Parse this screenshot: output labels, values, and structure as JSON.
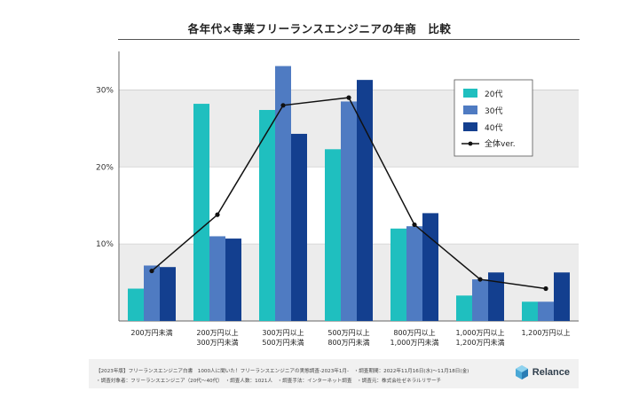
{
  "title": "各年代×専業フリーランスエンジニアの年商　比較",
  "colors": {
    "series_20": "#1fbfbf",
    "series_30": "#4f7bc2",
    "series_40": "#133f8f",
    "overall": "#111111",
    "grid_band": "#ececec"
  },
  "chart_data": {
    "type": "bar",
    "categories": [
      [
        "200万円未満"
      ],
      [
        "200万円以上",
        "300万円未満"
      ],
      [
        "300万円以上",
        "500万円未満"
      ],
      [
        "500万円以上",
        "800万円未満"
      ],
      [
        "800万円以上",
        "1,000万円未満"
      ],
      [
        "1,000万円以上",
        "1,200万円未満"
      ],
      [
        "1,200万円以上"
      ]
    ],
    "series": [
      {
        "name": "20代",
        "values": [
          4.2,
          28.2,
          27.4,
          22.3,
          12.0,
          3.3,
          2.5
        ]
      },
      {
        "name": "30代",
        "values": [
          7.2,
          11.0,
          33.1,
          28.5,
          12.3,
          5.4,
          2.5
        ]
      },
      {
        "name": "40代",
        "values": [
          7.0,
          10.7,
          24.3,
          31.3,
          14.0,
          6.3,
          6.3
        ]
      }
    ],
    "line": {
      "name": "全体ver.",
      "values": [
        6.5,
        13.8,
        28.0,
        29.0,
        12.5,
        5.4,
        4.2
      ]
    },
    "yticks": [
      {
        "value": 10,
        "label": "10%"
      },
      {
        "value": 20,
        "label": "20%"
      },
      {
        "value": 30,
        "label": "30%"
      }
    ],
    "ylim": [
      0,
      35
    ],
    "legend_position": "top-right"
  },
  "footer": {
    "line1": "【2023年版】フリーランスエンジニア白書　1000人に聞いた！フリーランスエンジニアの実態調査-2023年1月-　・調査期間：2022年11月16日(水)〜11月18日(金)",
    "line2": "・調査対象者：フリーランスエンジニア（20代〜40代）　・調査人数：1021人　・調査手法：インターネット調査　・調査元：株式会社ゼネラルリサーチ"
  },
  "logo": {
    "text": "Relance"
  }
}
